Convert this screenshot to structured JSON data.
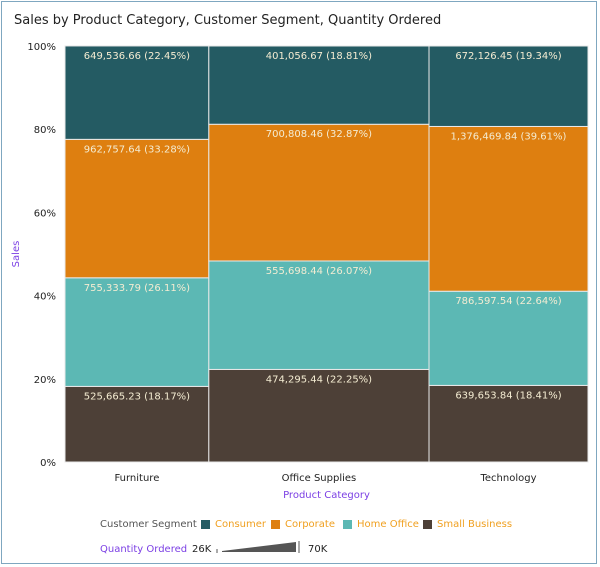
{
  "chart_data": {
    "type": "marimekko",
    "title": "Sales by Product Category, Customer Segment, Quantity Ordered",
    "xlabel": "Product Category",
    "ylabel": "Sales",
    "y_ticks": [
      "0%",
      "20%",
      "40%",
      "60%",
      "80%",
      "100%"
    ],
    "ylim": [
      0,
      100
    ],
    "categories": [
      "Furniture",
      "Office Supplies",
      "Technology"
    ],
    "width_measure": "Quantity Ordered",
    "quantity_share": [
      0.275,
      0.421,
      0.304
    ],
    "series": [
      {
        "name": "Small Business",
        "color": "#4d4037",
        "values": [
          525665.23,
          474295.44,
          639653.84
        ],
        "percents": [
          18.17,
          22.25,
          18.41
        ],
        "labels": [
          "525,665.23 (18.17%)",
          "474,295.44 (22.25%)",
          "639,653.84 (18.41%)"
        ]
      },
      {
        "name": "Home Office",
        "color": "#5cb8b4",
        "values": [
          755333.79,
          555698.44,
          786597.54
        ],
        "percents": [
          26.11,
          26.07,
          22.64
        ],
        "labels": [
          "755,333.79 (26.11%)",
          "555,698.44 (26.07%)",
          "786,597.54 (22.64%)"
        ]
      },
      {
        "name": "Corporate",
        "color": "#de7f10",
        "values": [
          962757.64,
          700808.46,
          1376469.84
        ],
        "percents": [
          33.28,
          32.87,
          39.61
        ],
        "labels": [
          "962,757.64 (33.28%)",
          "700,808.46 (32.87%)",
          "1,376,469.84 (39.61%)"
        ]
      },
      {
        "name": "Consumer",
        "color": "#245b63",
        "values": [
          649536.66,
          401056.67,
          672126.45
        ],
        "percents": [
          22.45,
          18.81,
          19.34
        ],
        "labels": [
          "649,536.66 (22.45%)",
          "401,056.67 (18.81%)",
          "672,126.45 (19.34%)"
        ]
      }
    ],
    "legend": {
      "title": "Customer Segment",
      "placement": "bottom",
      "items": [
        "Consumer",
        "Corporate",
        "Home Office",
        "Small Business"
      ]
    },
    "size_legend": {
      "title": "Quantity Ordered",
      "min": "26K",
      "max": "70K"
    }
  }
}
